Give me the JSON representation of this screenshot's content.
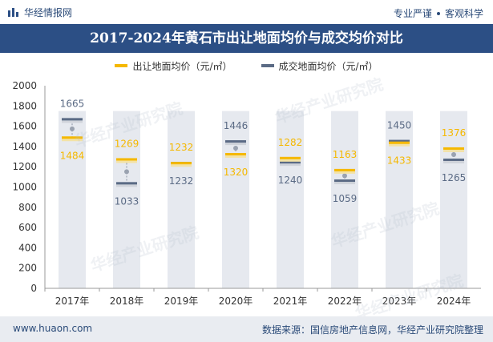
{
  "header": {
    "brand": "华经情报网",
    "tagline_left": "专业严谨",
    "tagline_right": "客观科学"
  },
  "colors": {
    "navy": "#2c4f85",
    "series1": "#f5b800",
    "series2": "#5b6b85",
    "bar_bg": "#e6e9ef"
  },
  "watermark": "华经产业研究院",
  "footer": {
    "url": "www.huaon.com",
    "source": "数据来源：国信房地产信息网，华经产业研究院整理"
  },
  "chart_data": {
    "type": "line",
    "title": "2017-2024年黄石市出让地面均价与成交均价对比",
    "categories": [
      "2017年",
      "2018年",
      "2019年",
      "2020年",
      "2021年",
      "2022年",
      "2023年",
      "2024年"
    ],
    "series": [
      {
        "name": "出让地面均价（元/㎡）",
        "values": [
          1484,
          1269,
          1232,
          1320,
          1282,
          1163,
          1433,
          1376
        ]
      },
      {
        "name": "成交地面均价（元/㎡）",
        "values": [
          1665,
          1033,
          1232,
          1446,
          1240,
          1059,
          1450,
          1265
        ]
      }
    ],
    "yticks": [
      0,
      200,
      400,
      600,
      800,
      1000,
      1200,
      1400,
      1600,
      1800,
      2000
    ],
    "ylim": [
      0,
      2000
    ],
    "bar_top": 1750,
    "xlabel": "",
    "ylabel": "",
    "legend_position": "top"
  }
}
